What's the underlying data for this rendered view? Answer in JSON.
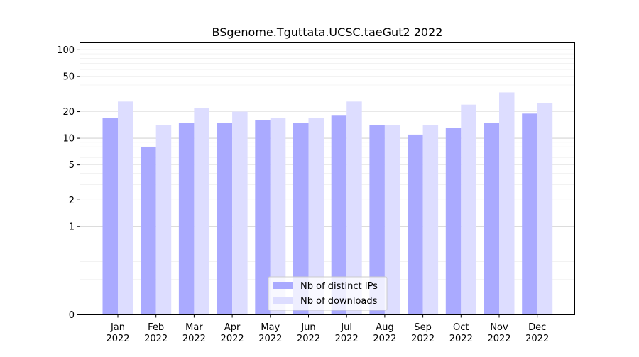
{
  "chart_data": {
    "type": "bar",
    "title": "BSgenome.Tguttata.UCSC.taeGut2 2022",
    "xlabel": "",
    "ylabel": "",
    "yscale": "symlog",
    "ylim": [
      0,
      120
    ],
    "yticks": [
      0,
      1,
      2,
      5,
      10,
      20,
      50,
      100
    ],
    "grid": true,
    "legend_position": "bottom-center",
    "categories": [
      {
        "month": "Jan",
        "year": "2022"
      },
      {
        "month": "Feb",
        "year": "2022"
      },
      {
        "month": "Mar",
        "year": "2022"
      },
      {
        "month": "Apr",
        "year": "2022"
      },
      {
        "month": "May",
        "year": "2022"
      },
      {
        "month": "Jun",
        "year": "2022"
      },
      {
        "month": "Jul",
        "year": "2022"
      },
      {
        "month": "Aug",
        "year": "2022"
      },
      {
        "month": "Sep",
        "year": "2022"
      },
      {
        "month": "Oct",
        "year": "2022"
      },
      {
        "month": "Nov",
        "year": "2022"
      },
      {
        "month": "Dec",
        "year": "2022"
      }
    ],
    "series": [
      {
        "name": "Nb of distinct IPs",
        "color": "#aaaaff",
        "values": [
          17,
          8,
          15,
          15,
          16,
          15,
          18,
          14,
          11,
          13,
          15,
          19
        ]
      },
      {
        "name": "Nb of downloads",
        "color": "#ddddff",
        "values": [
          26,
          14,
          22,
          20,
          17,
          17,
          26,
          14,
          14,
          24,
          33,
          25
        ]
      }
    ]
  }
}
